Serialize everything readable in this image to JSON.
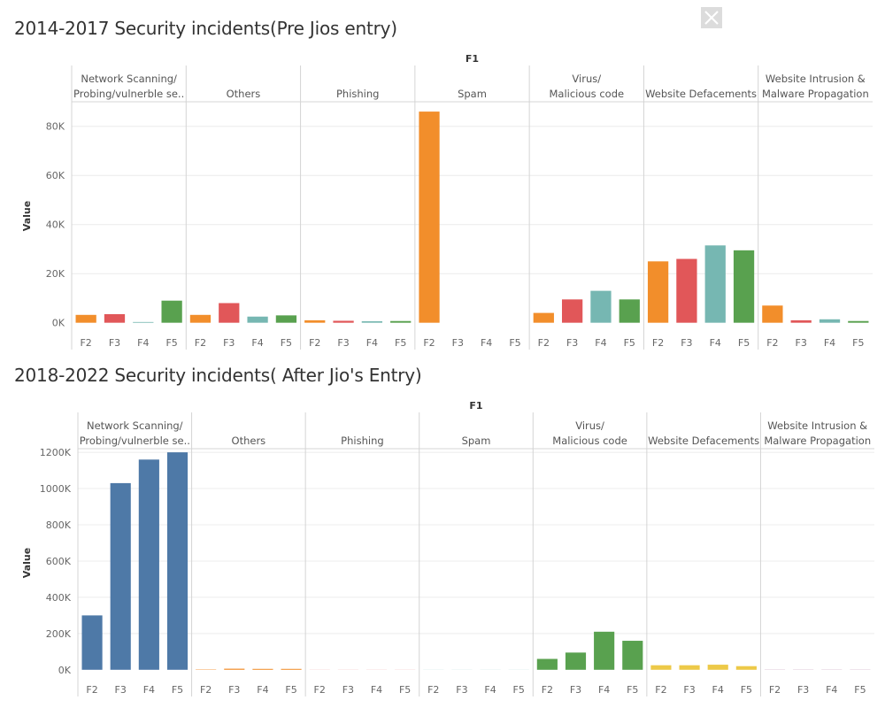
{
  "close_icon": "close-icon",
  "chart_data": [
    {
      "type": "bar",
      "title": "2014-2017 Security incidents(Pre Jios entry)",
      "column_header": "F1",
      "ylabel": "Value",
      "panels": [
        "Network Scanning/ Probing/vulnerble se..",
        "Others",
        "Phishing",
        "Spam",
        "Virus/ Malicious code",
        "Website Defacements",
        "Website Intrusion & Malware Propagation"
      ],
      "categories": [
        "F2",
        "F3",
        "F4",
        "F5"
      ],
      "y_ticks": [
        {
          "v": 0,
          "label": "0K"
        },
        {
          "v": 20000,
          "label": "20K"
        },
        {
          "v": 40000,
          "label": "40K"
        },
        {
          "v": 60000,
          "label": "60K"
        },
        {
          "v": 80000,
          "label": "80K"
        }
      ],
      "ylim": [
        -3000,
        90000
      ],
      "grid": true,
      "colors": [
        "#f28e2b",
        "#e15759",
        "#76b7b2",
        "#59a14f"
      ],
      "color_by": "category",
      "values": [
        [
          3200,
          3500,
          300,
          9000
        ],
        [
          3200,
          8000,
          2500,
          3000
        ],
        [
          1000,
          800,
          600,
          700
        ],
        [
          86000,
          0,
          0,
          0
        ],
        [
          4000,
          9500,
          13000,
          9500
        ],
        [
          25000,
          26000,
          31500,
          29500
        ],
        [
          7000,
          1000,
          1400,
          700
        ]
      ]
    },
    {
      "type": "bar",
      "title": "2018-2022 Security incidents( After Jio's Entry)",
      "column_header": "F1",
      "ylabel": "Value",
      "panels": [
        "Network Scanning/ Probing/vulnerble se..",
        "Others",
        "Phishing",
        "Spam",
        "Virus/ Malicious code",
        "Website Defacements",
        "Website Intrusion & Malware Propagation"
      ],
      "categories": [
        "F2",
        "F3",
        "F4",
        "F5"
      ],
      "y_ticks": [
        {
          "v": 0,
          "label": "0K"
        },
        {
          "v": 200000,
          "label": "200K"
        },
        {
          "v": 400000,
          "label": "400K"
        },
        {
          "v": 600000,
          "label": "600K"
        },
        {
          "v": 800000,
          "label": "800K"
        },
        {
          "v": 1000000,
          "label": "1000K"
        },
        {
          "v": 1200000,
          "label": "1200K"
        }
      ],
      "ylim": [
        -40000,
        1220000
      ],
      "grid": true,
      "colors": [
        "#4e79a7",
        "#f28e2b",
        "#e15759",
        "#76b7b2",
        "#59a14f",
        "#edc948",
        "#b07aa1"
      ],
      "color_by": "panel",
      "values": [
        [
          300000,
          1030000,
          1160000,
          1200000
        ],
        [
          2000,
          6000,
          5000,
          5000
        ],
        [
          500,
          500,
          500,
          500
        ],
        [
          500,
          500,
          500,
          500
        ],
        [
          60000,
          95000,
          210000,
          160000
        ],
        [
          25000,
          25000,
          28000,
          20000
        ],
        [
          1000,
          1000,
          1000,
          1000
        ]
      ]
    }
  ]
}
